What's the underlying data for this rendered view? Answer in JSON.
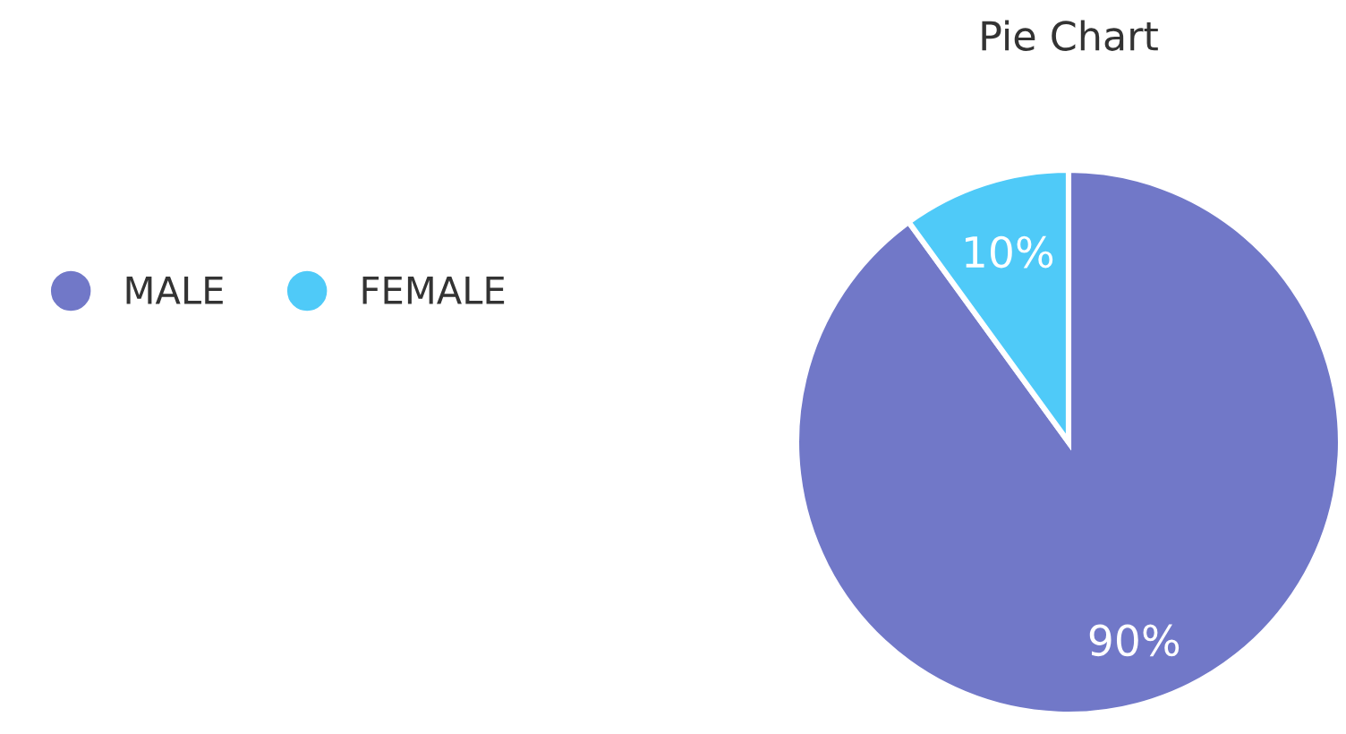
{
  "chart_data": {
    "type": "pie",
    "title": "Pie Chart",
    "categories": [
      "MALE",
      "FEMALE"
    ],
    "values": [
      90,
      10
    ],
    "colors": [
      "#7178c8",
      "#4fcaf8"
    ],
    "value_labels": [
      "90%",
      "10%"
    ],
    "legend": "left"
  }
}
